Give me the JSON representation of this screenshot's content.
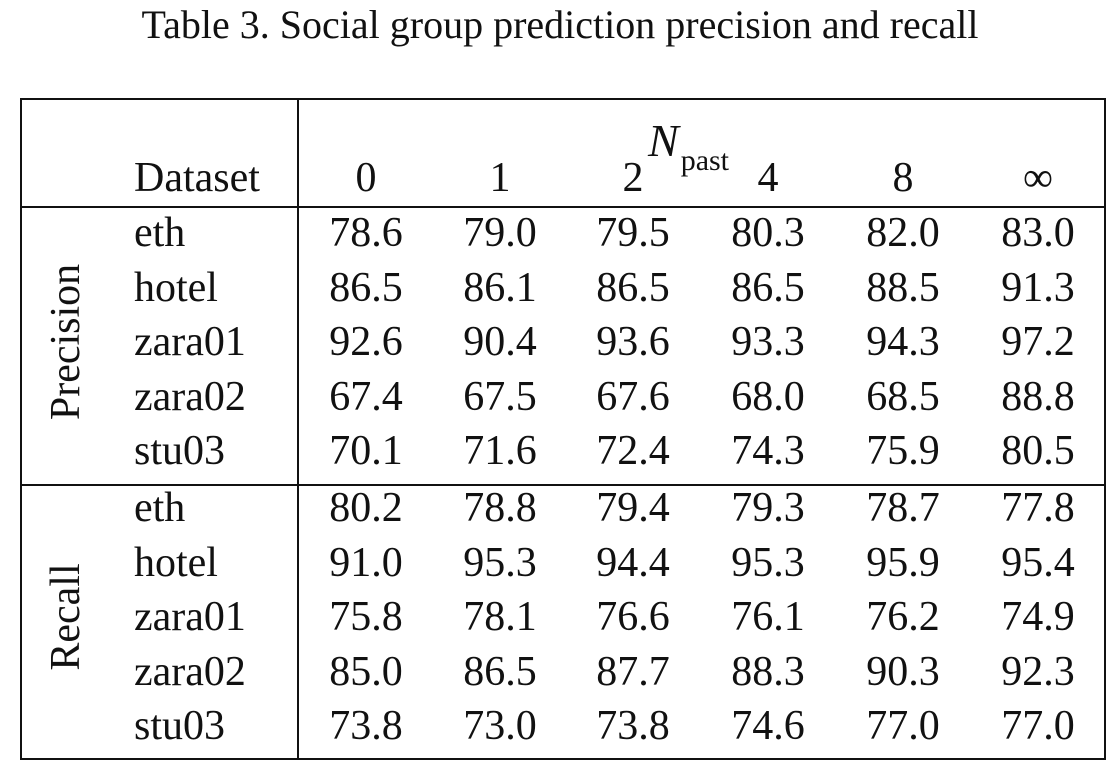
{
  "caption": "Table 3. Social group prediction precision and recall",
  "table": {
    "npast_symbol": "N",
    "npast_subscript": "past",
    "dataset_header": "Dataset",
    "columns": [
      "0",
      "1",
      "2",
      "4",
      "8",
      "∞"
    ],
    "groups": [
      {
        "label": "Precision",
        "rows": [
          {
            "dataset": "eth",
            "values": [
              "78.6",
              "79.0",
              "79.5",
              "80.3",
              "82.0",
              "83.0"
            ]
          },
          {
            "dataset": "hotel",
            "values": [
              "86.5",
              "86.1",
              "86.5",
              "86.5",
              "88.5",
              "91.3"
            ]
          },
          {
            "dataset": "zara01",
            "values": [
              "92.6",
              "90.4",
              "93.6",
              "93.3",
              "94.3",
              "97.2"
            ]
          },
          {
            "dataset": "zara02",
            "values": [
              "67.4",
              "67.5",
              "67.6",
              "68.0",
              "68.5",
              "88.8"
            ]
          },
          {
            "dataset": "stu03",
            "values": [
              "70.1",
              "71.6",
              "72.4",
              "74.3",
              "75.9",
              "80.5"
            ]
          }
        ]
      },
      {
        "label": "Recall",
        "rows": [
          {
            "dataset": "eth",
            "values": [
              "80.2",
              "78.8",
              "79.4",
              "79.3",
              "78.7",
              "77.8"
            ]
          },
          {
            "dataset": "hotel",
            "values": [
              "91.0",
              "95.3",
              "94.4",
              "95.3",
              "95.9",
              "95.4"
            ]
          },
          {
            "dataset": "zara01",
            "values": [
              "75.8",
              "78.1",
              "76.6",
              "76.1",
              "76.2",
              "74.9"
            ]
          },
          {
            "dataset": "zara02",
            "values": [
              "85.0",
              "86.5",
              "87.7",
              "88.3",
              "90.3",
              "92.3"
            ]
          },
          {
            "dataset": "stu03",
            "values": [
              "73.8",
              "73.0",
              "73.8",
              "74.6",
              "77.0",
              "77.0"
            ]
          }
        ]
      }
    ]
  }
}
